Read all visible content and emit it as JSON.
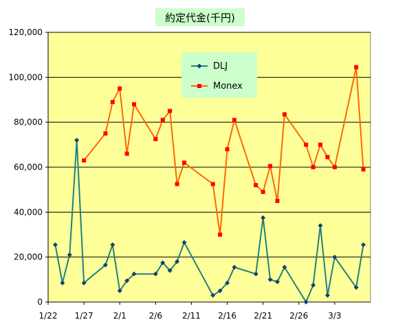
{
  "chart_data": {
    "type": "line",
    "title": "約定代金(千円)",
    "xlabel": "",
    "ylabel": "",
    "ylim": [
      0,
      120000
    ],
    "y_ticks": [
      "0",
      "20,000",
      "40,000",
      "60,000",
      "80,000",
      "100,000",
      "120,000"
    ],
    "y_tick_values": [
      0,
      20000,
      40000,
      60000,
      80000,
      100000,
      120000
    ],
    "x_ticks": [
      "1/22",
      "1/27",
      "2/1",
      "2/6",
      "2/11",
      "2/16",
      "2/21",
      "2/26",
      "3/3"
    ],
    "x_tick_values": [
      "1/22",
      "1/27",
      "2/1",
      "2/6",
      "2/11",
      "2/16",
      "2/21",
      "2/26",
      "3/3"
    ],
    "x_range": [
      "1/22",
      "3/8"
    ],
    "grid": "horizontal",
    "legend_position": "top-center",
    "colors": {
      "plot_background": "#ffff99",
      "title_background": "#ccffcc",
      "legend_background": "#ccffcc",
      "dlj": "#1f7f7f",
      "monex": "#ff6600",
      "monex_marker": "#ff0000"
    },
    "series": [
      {
        "name": "DLJ",
        "points": [
          {
            "x": "1/23",
            "y": 25500
          },
          {
            "x": "1/24",
            "y": 8500
          },
          {
            "x": "1/25",
            "y": 21000
          },
          {
            "x": "1/26",
            "y": 72000
          },
          {
            "x": "1/27",
            "y": 8500
          },
          {
            "x": "1/30",
            "y": 16500
          },
          {
            "x": "1/31",
            "y": 25500
          },
          {
            "x": "2/1",
            "y": 5000
          },
          {
            "x": "2/2",
            "y": 9500
          },
          {
            "x": "2/3",
            "y": 12500
          },
          {
            "x": "2/6",
            "y": 12500
          },
          {
            "x": "2/7",
            "y": 17500
          },
          {
            "x": "2/8",
            "y": 14000
          },
          {
            "x": "2/9",
            "y": 18000
          },
          {
            "x": "2/10",
            "y": 26500
          },
          {
            "x": "2/14",
            "y": 3000
          },
          {
            "x": "2/15",
            "y": 5000
          },
          {
            "x": "2/16",
            "y": 8500
          },
          {
            "x": "2/17",
            "y": 15500
          },
          {
            "x": "2/20",
            "y": 12500
          },
          {
            "x": "2/21",
            "y": 37500
          },
          {
            "x": "2/22",
            "y": 10000
          },
          {
            "x": "2/23",
            "y": 9000
          },
          {
            "x": "2/24",
            "y": 15500
          },
          {
            "x": "2/27",
            "y": 0
          },
          {
            "x": "2/28",
            "y": 7500
          },
          {
            "x": "3/1",
            "y": 34000
          },
          {
            "x": "3/2",
            "y": 3000
          },
          {
            "x": "3/3",
            "y": 20000
          },
          {
            "x": "3/6",
            "y": 6500
          },
          {
            "x": "3/7",
            "y": 25500
          }
        ]
      },
      {
        "name": "Monex",
        "points": [
          {
            "x": "1/27",
            "y": 63000
          },
          {
            "x": "1/30",
            "y": 75000
          },
          {
            "x": "1/31",
            "y": 89000
          },
          {
            "x": "2/1",
            "y": 95000
          },
          {
            "x": "2/2",
            "y": 66000
          },
          {
            "x": "2/3",
            "y": 88000
          },
          {
            "x": "2/6",
            "y": 72500
          },
          {
            "x": "2/7",
            "y": 81000
          },
          {
            "x": "2/8",
            "y": 85000
          },
          {
            "x": "2/9",
            "y": 52500
          },
          {
            "x": "2/10",
            "y": 62000
          },
          {
            "x": "2/14",
            "y": 52500
          },
          {
            "x": "2/15",
            "y": 30000
          },
          {
            "x": "2/16",
            "y": 68000
          },
          {
            "x": "2/17",
            "y": 81000
          },
          {
            "x": "2/20",
            "y": 52000
          },
          {
            "x": "2/21",
            "y": 49000
          },
          {
            "x": "2/22",
            "y": 60500
          },
          {
            "x": "2/23",
            "y": 45000
          },
          {
            "x": "2/24",
            "y": 83500
          },
          {
            "x": "2/27",
            "y": 70000
          },
          {
            "x": "2/28",
            "y": 60000
          },
          {
            "x": "3/1",
            "y": 70000
          },
          {
            "x": "3/2",
            "y": 64500
          },
          {
            "x": "3/3",
            "y": 60000
          },
          {
            "x": "3/6",
            "y": 104500
          },
          {
            "x": "3/7",
            "y": 59000
          }
        ]
      }
    ]
  }
}
